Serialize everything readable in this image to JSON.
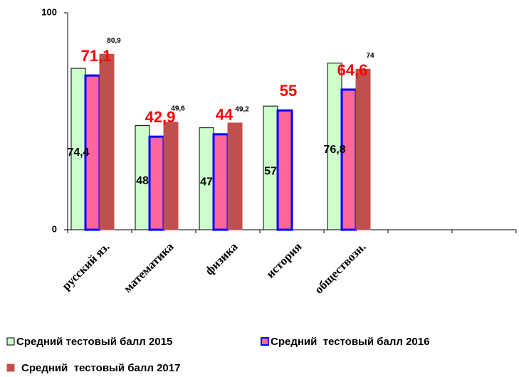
{
  "chart_data": {
    "type": "bar",
    "categories": [
      "русский яз.",
      "математика",
      "физика",
      "история",
      "обществозн.",
      null,
      null
    ],
    "series": [
      {
        "name": "Средний тестовый балл 2015",
        "color": "#ccffcc",
        "edge": "#000000",
        "label_color": "#000000",
        "values": [
          74.4,
          48,
          47,
          57,
          76.8,
          null,
          null
        ],
        "value_labels": [
          "74,4",
          "48",
          "47",
          "57",
          "76,8",
          null,
          null
        ]
      },
      {
        "name": "Средний  тестовый балл 2016",
        "color": "#ff6699",
        "edge": "#0000ff",
        "label_color": "#ff0000",
        "values": [
          71.1,
          42.9,
          44,
          55,
          64.6,
          null,
          null
        ],
        "value_labels": [
          "71,1",
          "42,9",
          "44",
          "55",
          "64,6",
          null,
          null
        ]
      },
      {
        "name": "Средний  тестовый балл 2017",
        "color": "#c0504d",
        "edge": "#c0504d",
        "label_color": "#000000",
        "values": [
          80.9,
          49.6,
          49.2,
          null,
          74,
          null,
          null
        ],
        "value_labels": [
          "80,9",
          "49,6",
          "49,2",
          null,
          "74",
          null,
          null
        ]
      }
    ],
    "ylim": [
      0,
      100
    ],
    "yticks": [
      0,
      100
    ],
    "grid": false
  }
}
